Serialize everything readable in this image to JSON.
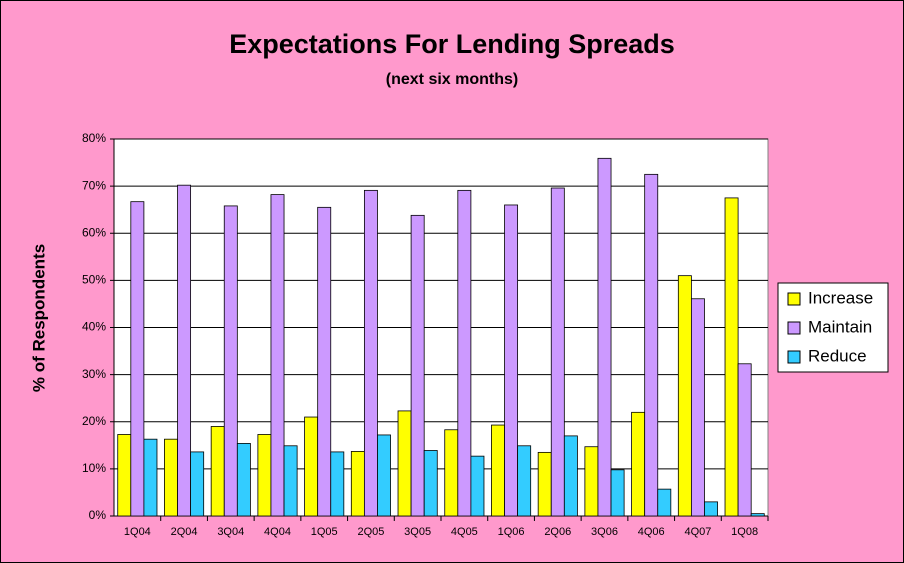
{
  "chart_data": {
    "type": "bar",
    "title": "Expectations For Lending Spreads",
    "subtitle": "(next six months)",
    "y_label": "% of Respondents",
    "categories": [
      "1Q04",
      "2Q04",
      "3Q04",
      "4Q04",
      "1Q05",
      "2Q05",
      "3Q05",
      "4Q05",
      "1Q06",
      "2Q06",
      "3Q06",
      "4Q06",
      "4Q07",
      "1Q08"
    ],
    "series": [
      {
        "name": "Increase",
        "color": "#ffff00",
        "values": [
          17.3,
          16.3,
          19,
          17.3,
          21,
          13.7,
          22.3,
          18.3,
          19.3,
          13.5,
          14.7,
          22,
          51,
          67.5
        ]
      },
      {
        "name": "Maintain",
        "color": "#cc99ff",
        "values": [
          66.7,
          70.2,
          65.8,
          68.2,
          65.5,
          69.1,
          63.8,
          69.1,
          66,
          69.6,
          75.9,
          72.5,
          46.1,
          32.3
        ]
      },
      {
        "name": "Reduce",
        "color": "#33ccff",
        "values": [
          16.3,
          13.6,
          15.4,
          14.9,
          13.6,
          17.2,
          13.9,
          12.7,
          14.9,
          17,
          9.8,
          5.7,
          3,
          0.5
        ]
      }
    ],
    "ylim": [
      0,
      80
    ],
    "yticks": [
      {
        "value": 0,
        "label": "0%"
      },
      {
        "value": 10,
        "label": "10%"
      },
      {
        "value": 20,
        "label": "20%"
      },
      {
        "value": 30,
        "label": "30%"
      },
      {
        "value": 40,
        "label": "40%"
      },
      {
        "value": 50,
        "label": "50%"
      },
      {
        "value": 60,
        "label": "60%"
      },
      {
        "value": 70,
        "label": "70%"
      },
      {
        "value": 80,
        "label": "80%"
      }
    ],
    "grid": true,
    "legend": "right"
  }
}
